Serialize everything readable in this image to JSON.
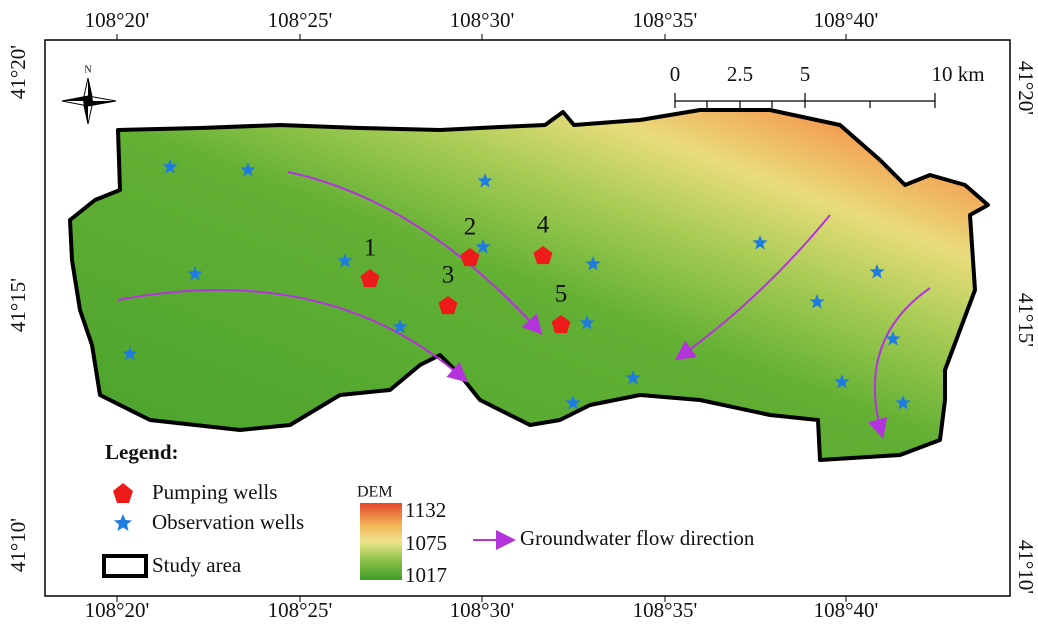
{
  "frame": {
    "top": [
      "108°20'",
      "108°25'",
      "108°30'",
      "108°35'",
      "108°40'"
    ],
    "bottom": [
      "108°20'",
      "108°25'",
      "108°30'",
      "108°35'",
      "108°40'"
    ],
    "left": [
      "41°20'",
      "41°15'",
      "41°10'"
    ],
    "right": [
      "41°20'",
      "41°15'",
      "41°10'"
    ]
  },
  "north_arrow": "N",
  "scale_bar": [
    "0",
    "2.5",
    "5",
    "10 km"
  ],
  "pumping_wells": [
    "1",
    "2",
    "3",
    "4",
    "5"
  ],
  "legend": {
    "title": "Legend:",
    "pumping": "Pumping wells",
    "observation": "Observation wells",
    "study_area": "Study area",
    "dem_title": "DEM",
    "dem_high": "1132",
    "dem_mid": "1075",
    "dem_low": "1017",
    "flow": "Groundwater flow direction"
  }
}
